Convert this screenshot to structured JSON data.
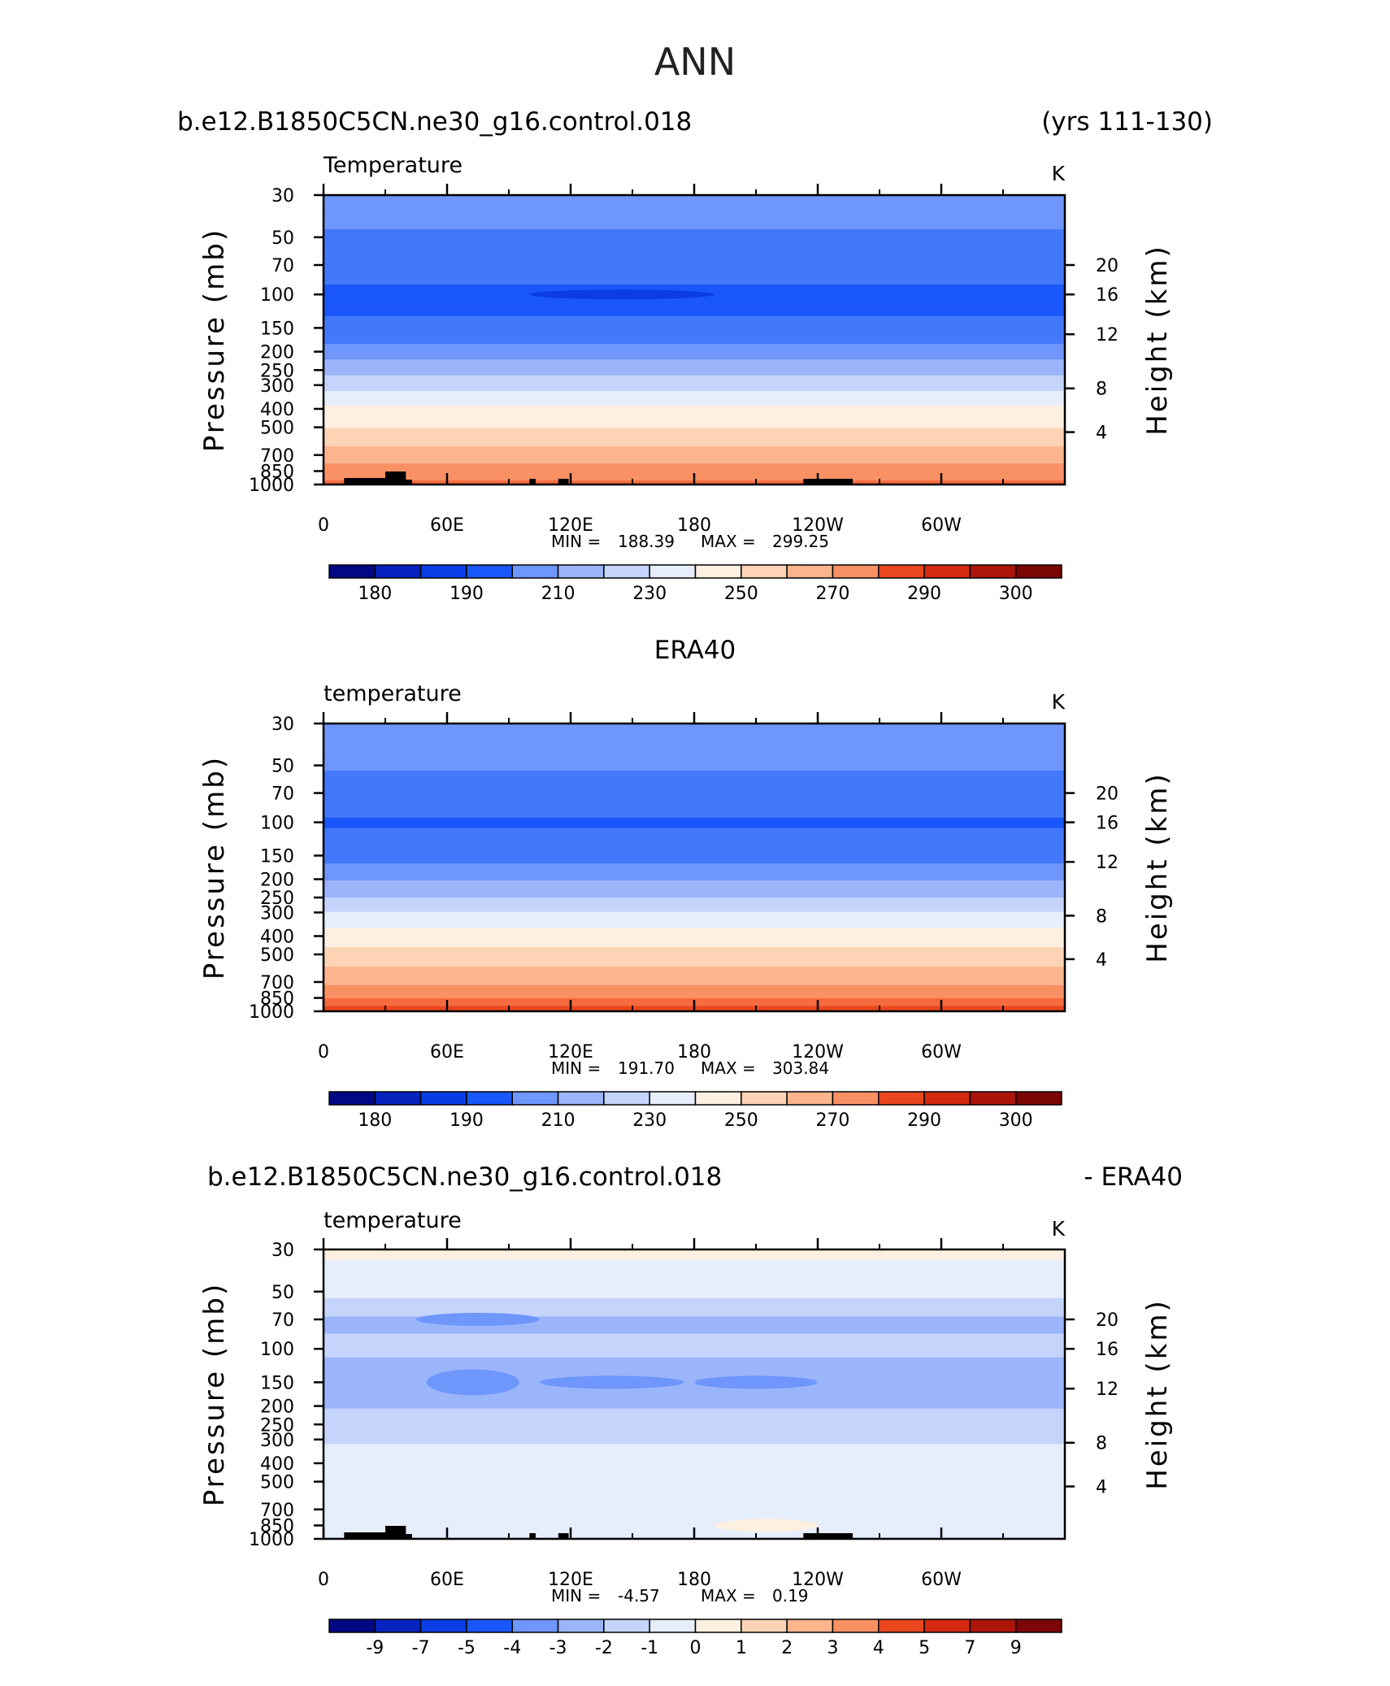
{
  "page": {
    "title": "ANN"
  },
  "colors": {
    "palette_blue_red": [
      "#000883",
      "#0623bf",
      "#0a3de6",
      "#1a57fa",
      "#4478fb",
      "#6e96fb",
      "#9bb5fb",
      "#c5d4fb",
      "#e6eefc",
      "#fdf0e0",
      "#fdd3b5",
      "#fcb48d",
      "#f99165",
      "#f56b3f",
      "#eb471e",
      "#d32a10",
      "#ad150a",
      "#7c0505"
    ],
    "mask_land": "#000000",
    "axis_line": "#000000"
  },
  "chart_data": [
    {
      "type": "heatmap",
      "left_title": "b.e12.B1850C5CN.ne30_g16.control.018",
      "right_title": "(yrs 111-130)",
      "plot_label": "Temperature",
      "units": "K",
      "ylabel": "Pressure (mb)",
      "y2label": "Height (km)",
      "x_ticks": [
        "0",
        "60E",
        "120E",
        "180",
        "120W",
        "60W"
      ],
      "y_ticks": [
        "30",
        "50",
        "70",
        "100",
        "150",
        "200",
        "250",
        "300",
        "400",
        "500",
        "700",
        "850",
        "1000"
      ],
      "y2_ticks": [
        "20",
        "16",
        "12",
        "8",
        "4"
      ],
      "min_label": "MIN =",
      "min_value": "188.39",
      "max_label": "MAX =",
      "max_value": "299.25",
      "colorbar_labels": [
        "180",
        "190",
        "210",
        "230",
        "250",
        "270",
        "290",
        "300"
      ],
      "colorbar_levels": [
        175,
        180,
        185,
        190,
        200,
        210,
        220,
        230,
        240,
        250,
        260,
        270,
        280,
        290,
        295,
        300,
        305
      ],
      "levels_p": [
        30,
        50,
        70,
        100,
        150,
        200,
        250,
        300,
        400,
        500,
        700,
        850,
        1000
      ],
      "levels_value": [
        214,
        209,
        204,
        198,
        201,
        215,
        227,
        236,
        252,
        260,
        275,
        285,
        292
      ],
      "cold_core": {
        "p": 100,
        "value": 188.39,
        "lon_range": [
          100,
          190
        ]
      },
      "topography": true
    },
    {
      "type": "heatmap",
      "left_title": "",
      "center_title": "ERA40",
      "right_title": "",
      "plot_label": "temperature",
      "units": "K",
      "ylabel": "Pressure (mb)",
      "y2label": "Height (km)",
      "x_ticks": [
        "0",
        "60E",
        "120E",
        "180",
        "120W",
        "60W"
      ],
      "y_ticks": [
        "30",
        "50",
        "70",
        "100",
        "150",
        "200",
        "250",
        "300",
        "400",
        "500",
        "700",
        "850",
        "1000"
      ],
      "y2_ticks": [
        "20",
        "16",
        "12",
        "8",
        "4"
      ],
      "min_label": "MIN =",
      "min_value": "191.70",
      "max_label": "MAX =",
      "max_value": "303.84",
      "colorbar_labels": [
        "180",
        "190",
        "210",
        "230",
        "250",
        "270",
        "290",
        "300"
      ],
      "colorbar_levels": [
        175,
        180,
        185,
        190,
        200,
        210,
        220,
        230,
        240,
        250,
        260,
        270,
        280,
        290,
        295,
        300,
        305
      ],
      "levels_p": [
        30,
        50,
        70,
        100,
        150,
        200,
        250,
        300,
        400,
        500,
        700,
        850,
        1000
      ],
      "levels_value": [
        216,
        211,
        205,
        199,
        205,
        219,
        230,
        240,
        255,
        263,
        278,
        290,
        298
      ],
      "topography": false
    },
    {
      "type": "heatmap",
      "left_title": "b.e12.B1850C5CN.ne30_g16.control.018",
      "right_title": "- ERA40",
      "plot_label": "temperature",
      "units": "K",
      "ylabel": "Pressure (mb)",
      "y2label": "Height (km)",
      "x_ticks": [
        "0",
        "60E",
        "120E",
        "180",
        "120W",
        "60W"
      ],
      "y_ticks": [
        "30",
        "50",
        "70",
        "100",
        "150",
        "200",
        "250",
        "300",
        "400",
        "500",
        "700",
        "850",
        "1000"
      ],
      "y2_ticks": [
        "20",
        "16",
        "12",
        "8",
        "4"
      ],
      "min_label": "MIN =",
      "min_value": "-4.57",
      "max_label": "MAX =",
      "max_value": "0.19",
      "colorbar_labels": [
        "-9",
        "-7",
        "-5",
        "-4",
        "-3",
        "-2",
        "-1",
        "0",
        "1",
        "2",
        "3",
        "4",
        "5",
        "7",
        "9"
      ],
      "colorbar_levels": [
        -10,
        -9,
        -8,
        -7,
        -6,
        -5,
        -4,
        -3,
        -2,
        -1,
        0,
        1,
        2,
        3,
        4,
        5,
        7,
        9,
        10
      ],
      "levels_p": [
        30,
        50,
        70,
        100,
        150,
        200,
        250,
        300,
        400,
        500,
        700,
        850,
        1000
      ],
      "levels_value": [
        -0.8,
        -1.6,
        -3.2,
        -2.8,
        -3.6,
        -3.1,
        -2.5,
        -2.1,
        -1.6,
        -1.5,
        -1.4,
        -1.2,
        -2.1
      ],
      "anomalies": [
        {
          "p": 70,
          "lon_range": [
            45,
            105
          ],
          "value": -4.2
        },
        {
          "p": 150,
          "lon_range": [
            50,
            95
          ],
          "value": -4.5
        },
        {
          "p": 150,
          "lon_range": [
            105,
            175
          ],
          "value": -4.3
        },
        {
          "p": 150,
          "lon_range": [
            180,
            240
          ],
          "value": -4.1
        },
        {
          "p": 850,
          "lon_range": [
            190,
            240
          ],
          "value": -0.6
        }
      ],
      "topography": true
    }
  ]
}
